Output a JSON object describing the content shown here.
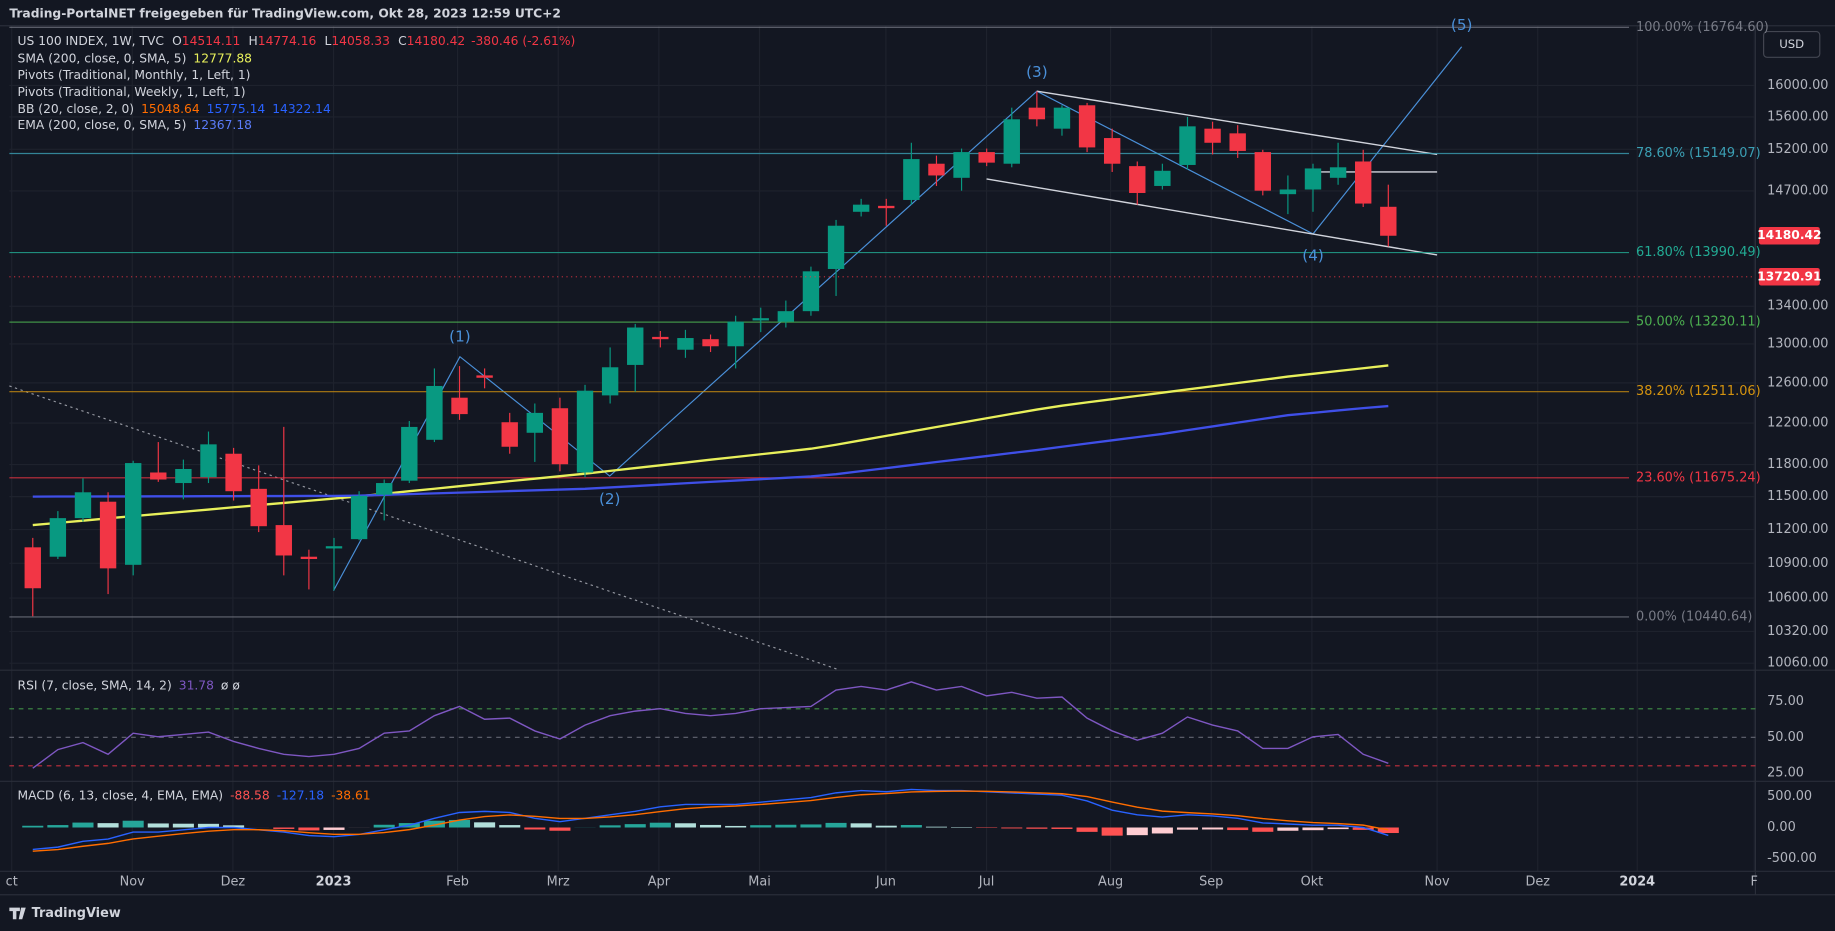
{
  "header": {
    "title": "Trading-PortalNET freigegeben für TradingView.com, Okt 28, 2023 12:59 UTC+2",
    "currency": "USD",
    "logo": "TradingView"
  },
  "chart_data": [
    {
      "type": "candlestick",
      "title": "US 100 INDEX, 1W, TVC",
      "ohlc_labels": [
        "O",
        "H",
        "L",
        "C"
      ],
      "change": "-380.46 (-2.61%)",
      "open": [
        11041,
        10958,
        11303,
        11453,
        10887,
        11725,
        11626,
        11681,
        11903,
        11572,
        11240,
        10958,
        11031,
        11114,
        11518,
        11648,
        12037,
        12451,
        12676,
        12208,
        12105,
        12346,
        11725,
        12474,
        12783,
        13074,
        12940,
        13050,
        12976,
        13248,
        13235,
        13347,
        13807,
        14456,
        14525,
        14594,
        15025,
        14856,
        15166,
        15025,
        15717,
        15454,
        15747,
        15338,
        14996,
        14759,
        15010,
        15454,
        15396,
        15166,
        14662,
        14717,
        14856,
        15052,
        14514.11
      ],
      "high": [
        11125,
        11367,
        11670,
        11540,
        11836,
        12015,
        11847,
        12117,
        11959,
        11792,
        12162,
        11020,
        11125,
        11550,
        11659,
        12220,
        12747,
        12771,
        12747,
        12300,
        12393,
        12451,
        12580,
        12964,
        13211,
        13136,
        13148,
        13099,
        13298,
        13385,
        13461,
        13833,
        14362,
        14607,
        14607,
        15280,
        15123,
        15209,
        15209,
        15717,
        15925,
        15747,
        15777,
        15454,
        15052,
        15025,
        15600,
        15541,
        15498,
        15194,
        14884,
        15025,
        15280,
        15194,
        14774.16
      ],
      "low": [
        10446,
        10938,
        11271,
        10634,
        10795,
        11637,
        11475,
        11626,
        11464,
        11177,
        10795,
        10674,
        10664,
        11104,
        11282,
        11626,
        12015,
        12231,
        12545,
        11903,
        11825,
        11736,
        11681,
        12393,
        12510,
        12964,
        12856,
        12916,
        12747,
        13124,
        13173,
        13298,
        13511,
        14402,
        14295,
        14539,
        14759,
        14703,
        14996,
        14982,
        15483,
        15367,
        15166,
        14926,
        14539,
        14717,
        14954,
        15137,
        15095,
        14648,
        14429,
        14456,
        14773,
        14512,
        14058.33
      ],
      "close": [
        10684,
        11303,
        11540,
        10856,
        11814,
        11659,
        11758,
        11993,
        11550,
        11230,
        10969,
        10938,
        11051,
        11507,
        11626,
        12162,
        12569,
        12288,
        12652,
        11970,
        12300,
        11803,
        12521,
        12759,
        13173,
        13050,
        13062,
        12976,
        13235,
        13272,
        13347,
        13781,
        14295,
        14539,
        14498,
        15081,
        14884,
        15166,
        15038,
        15571,
        15571,
        15717,
        15223,
        15025,
        14676,
        14940,
        15483,
        15280,
        15180,
        14703,
        14717,
        14968,
        14982,
        14552,
        14180.42
      ],
      "up_color": "#089981",
      "down_color": "#f23645",
      "overlays": [
        {
          "name": "SMA (200, close, 0, SMA, 5)",
          "color": "#e8f05b",
          "values": [
            11240,
            11260,
            11280,
            11301,
            11321,
            11341,
            11361,
            11381,
            11402,
            11422,
            11442,
            11462,
            11482,
            11503,
            11526,
            11550,
            11573,
            11597,
            11620,
            11644,
            11667,
            11690,
            11714,
            11740,
            11767,
            11793,
            11819,
            11846,
            11872,
            11898,
            11924,
            11951,
            11989,
            12032,
            12075,
            12118,
            12161,
            12204,
            12247,
            12290,
            12333,
            12371,
            12404,
            12436,
            12469,
            12501,
            12534,
            12566,
            12599,
            12631,
            12664,
            12692,
            12721,
            12749,
            12777.88
          ]
        },
        {
          "name": "EMA (200, close, 0, SMA, 5)",
          "color": "#3f4fe8",
          "values": [
            11500,
            11501,
            11501,
            11502,
            11502,
            11503,
            11503,
            11504,
            11504,
            11505,
            11505,
            11506,
            11506,
            11509,
            11516,
            11523,
            11530,
            11537,
            11544,
            11551,
            11558,
            11565,
            11572,
            11585,
            11598,
            11611,
            11624,
            11637,
            11649,
            11662,
            11675,
            11688,
            11709,
            11738,
            11766,
            11795,
            11824,
            11852,
            11881,
            11910,
            11938,
            11970,
            12001,
            12032,
            12063,
            12094,
            12131,
            12167,
            12204,
            12241,
            12277,
            12300,
            12324,
            12347,
            12367.18
          ]
        }
      ],
      "studies": [
        "Pivots (Traditional, Monthly, 1, Left, 1)",
        "Pivots (Traditional, Weekly, 1, Left, 1)"
      ],
      "bb": {
        "name": "BB (20, close, 2, 0)",
        "values": [
          15048.64,
          15775.14,
          14322.14
        ],
        "colors": [
          "#ff6d00",
          "#2962ff",
          "#2962ff"
        ]
      },
      "fib": [
        {
          "label": "100.00% (16764.60)",
          "value": 16764.6,
          "color": "#787b86"
        },
        {
          "label": "78.60% (15149.07)",
          "value": 15149.07,
          "color": "#3ba0b5"
        },
        {
          "label": "61.80% (13990.49)",
          "value": 13990.49,
          "color": "#22ab94"
        },
        {
          "label": "50.00% (13230.11)",
          "value": 13230.11,
          "color": "#4caf50"
        },
        {
          "label": "38.20% (12511.06)",
          "value": 12511.06,
          "color": "#d4930f"
        },
        {
          "label": "23.60% (11675.24)",
          "value": 11675.24,
          "color": "#f23645"
        },
        {
          "label": "0.00% (10440.64)",
          "value": 10440.64,
          "color": "#787b86"
        }
      ],
      "waves": [
        "(1)",
        "(2)",
        "(3)",
        "(4)",
        "(5)"
      ],
      "pivot_tag": 13720.91,
      "x_labels": [
        "ct",
        "Nov",
        "Dez",
        "2023",
        "Feb",
        "Mrz",
        "Apr",
        "Mai",
        "Jun",
        "Jul",
        "Aug",
        "Sep",
        "Okt",
        "Nov",
        "Dez",
        "2024",
        "F"
      ],
      "log": true,
      "ylim": [
        10013,
        16786
      ],
      "yticks": [
        {
          "value": 16000,
          "label": "16000.00"
        },
        {
          "value": 15600,
          "label": "15600.00"
        },
        {
          "value": 15200,
          "label": "15200.00"
        },
        {
          "value": 14700,
          "label": "14700.00"
        },
        {
          "value": 13400,
          "label": "13400.00"
        },
        {
          "value": 13000,
          "label": "13000.00"
        },
        {
          "value": 12600,
          "label": "12600.00"
        },
        {
          "value": 12200,
          "label": "12200.00"
        },
        {
          "value": 11800,
          "label": "11800.00"
        },
        {
          "value": 11500,
          "label": "11500.00"
        },
        {
          "value": 11200,
          "label": "11200.00"
        },
        {
          "value": 10900,
          "label": "10900.00"
        },
        {
          "value": 10600,
          "label": "10600.00"
        },
        {
          "value": 10320,
          "label": "10320.00"
        },
        {
          "value": 10060,
          "label": "10060.00"
        }
      ],
      "grid": true
    },
    {
      "type": "line",
      "title": "RSI (7, close, SMA, 14, 2)",
      "extra": "ø ø",
      "color": "#7e57c2",
      "values": [
        28.3,
        41.4,
        46.3,
        38.1,
        52.9,
        50.4,
        52.0,
        53.7,
        47.1,
        42.2,
        38.1,
        36.5,
        38.1,
        42.2,
        52.9,
        54.5,
        65.2,
        71.7,
        62.7,
        63.5,
        54.5,
        48.8,
        58.6,
        65.2,
        68.4,
        70.1,
        66.8,
        65.2,
        66.8,
        70.1,
        70.9,
        71.7,
        83.2,
        85.7,
        83.2,
        88.9,
        83.2,
        85.7,
        79.1,
        81.6,
        77.5,
        78.3,
        63.5,
        54.5,
        48.0,
        52.9,
        64.3,
        58.6,
        54.5,
        42.2,
        42.2,
        50.4,
        52.0,
        38.1,
        31.78
      ],
      "bands": [
        70,
        50,
        30
      ],
      "band_colors": [
        "#4caf50",
        "#787b86",
        "#f23645"
      ],
      "ylim": [
        21.6,
        95.5
      ],
      "yticks": [
        {
          "value": 75,
          "label": "75.00"
        },
        {
          "value": 50,
          "label": "50.00"
        },
        {
          "value": 25,
          "label": "25.00"
        }
      ]
    },
    {
      "type": "macd",
      "title": "MACD (6, 13, close, 4, EMA, EMA)",
      "series": [
        {
          "kind": "histogram",
          "color": "#ff5252",
          "values": [
            28,
            39,
            79,
            70,
            109,
            65,
            61,
            59,
            35,
            -1,
            -23,
            -47,
            -39,
            -1,
            44,
            71,
            109,
            121,
            83,
            39,
            -32,
            -52,
            2,
            35,
            54,
            77,
            68,
            41,
            25,
            37,
            44,
            49,
            74,
            67,
            29,
            40,
            13,
            8,
            -7,
            -15,
            -20,
            -23,
            -70,
            -131,
            -123,
            -96,
            -35,
            -32,
            -41,
            -69,
            -52,
            -43,
            -26,
            -38,
            -88.58
          ]
        },
        {
          "kind": "line",
          "color": "#2962ff",
          "values": [
            -352,
            -315,
            -222,
            -185,
            -74,
            -74,
            -37,
            0,
            0,
            -37,
            -74,
            -130,
            -148,
            -111,
            -37,
            37,
            148,
            241,
            259,
            241,
            148,
            93,
            148,
            204,
            259,
            333,
            370,
            370,
            370,
            407,
            444,
            481,
            556,
            593,
            574,
            611,
            593,
            593,
            574,
            556,
            537,
            519,
            426,
            278,
            204,
            167,
            204,
            185,
            148,
            74,
            56,
            37,
            37,
            0,
            -127.18
          ]
        },
        {
          "kind": "line",
          "color": "#ff6d00",
          "values": [
            -380,
            -354,
            -301,
            -255,
            -183,
            -139,
            -98,
            -59,
            -35,
            -36,
            -51,
            -83,
            -109,
            -110,
            -81,
            -34,
            39,
            120,
            176,
            202,
            180,
            145,
            146,
            169,
            205,
            256,
            302,
            329,
            345,
            370,
            400,
            432,
            482,
            526,
            545,
            571,
            580,
            585,
            581,
            571,
            557,
            542,
            496,
            409,
            327,
            263,
            239,
            217,
            189,
            143,
            108,
            80,
            63,
            38,
            -38.61
          ]
        }
      ],
      "histogram_colors": [
        "#26a69a",
        "#b2dfdb",
        "#ffcdd2",
        "#ff5252"
      ],
      "ylim": [
        -704,
        648
      ],
      "yticks": [
        {
          "value": 500,
          "label": "500.00"
        },
        {
          "value": 0,
          "label": "0.00"
        },
        {
          "value": -500,
          "label": "-500.00"
        }
      ]
    }
  ]
}
